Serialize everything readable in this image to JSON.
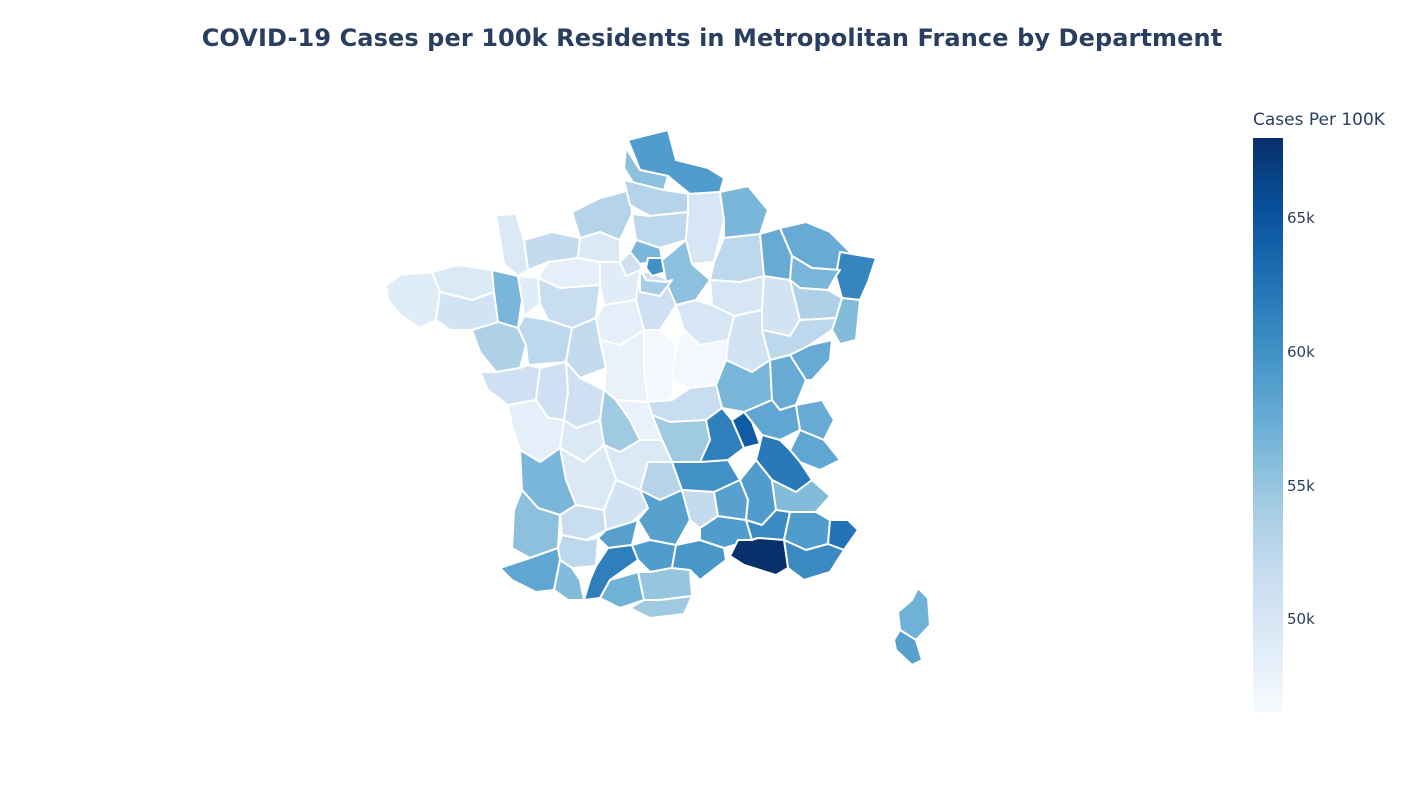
{
  "chart_data": {
    "type": "choropleth",
    "title": "COVID-19 Cases per 100k Residents in Metropolitan France by Department",
    "colorscale": "Blues",
    "color_range": [
      46500,
      68000
    ],
    "colorbar": {
      "title": "Cases Per 100K",
      "ticks": [
        {
          "value": 50000,
          "label": "50k"
        },
        {
          "value": 55000,
          "label": "55k"
        },
        {
          "value": 60000,
          "label": "60k"
        },
        {
          "value": 65000,
          "label": "65k"
        }
      ]
    },
    "colors": {
      "low": "#f7fbff",
      "high": "#08306b",
      "border": "#ffffff"
    },
    "regions": [
      {
        "name": "Finistère",
        "value": 49000
      },
      {
        "name": "Côtes-d'Armor",
        "value": 49500
      },
      {
        "name": "Morbihan",
        "value": 50500
      },
      {
        "name": "Ille-et-Vilaine",
        "value": 56500
      },
      {
        "name": "Manche",
        "value": 49500
      },
      {
        "name": "Calvados",
        "value": 52000
      },
      {
        "name": "Orne",
        "value": 48500
      },
      {
        "name": "Mayenne",
        "value": 49000
      },
      {
        "name": "Sarthe",
        "value": 51500
      },
      {
        "name": "Loire-Atlantique",
        "value": 53500
      },
      {
        "name": "Maine-et-Loire",
        "value": 52500
      },
      {
        "name": "Vendée",
        "value": 51000
      },
      {
        "name": "Eure",
        "value": 49500
      },
      {
        "name": "Seine-Maritime",
        "value": 53000
      },
      {
        "name": "Eure-et-Loir",
        "value": 49000
      },
      {
        "name": "Loir-et-Cher",
        "value": 48500
      },
      {
        "name": "Indre-et-Loire",
        "value": 52000
      },
      {
        "name": "Loiret",
        "value": 51000
      },
      {
        "name": "Cher",
        "value": 47000
      },
      {
        "name": "Indre",
        "value": 48000
      },
      {
        "name": "Nord",
        "value": 59000
      },
      {
        "name": "Pas-de-Calais",
        "value": 55500
      },
      {
        "name": "Somme",
        "value": 53000
      },
      {
        "name": "Oise",
        "value": 52500
      },
      {
        "name": "Aisne",
        "value": 50000
      },
      {
        "name": "Ardennes",
        "value": 56500
      },
      {
        "name": "Marne",
        "value": 52500
      },
      {
        "name": "Aube",
        "value": 50000
      },
      {
        "name": "Haute-Marne",
        "value": 50500
      },
      {
        "name": "Val-d'Oise",
        "value": 56500
      },
      {
        "name": "Paris",
        "value": 60000
      },
      {
        "name": "Seine-et-Marne",
        "value": 55500
      },
      {
        "name": "Yvelines",
        "value": 51000
      },
      {
        "name": "Essonne",
        "value": 54000
      },
      {
        "name": "Meuse",
        "value": 57500
      },
      {
        "name": "Moselle",
        "value": 57500
      },
      {
        "name": "Bas-Rhin",
        "value": 61000
      },
      {
        "name": "Meurthe-et-Moselle",
        "value": 56500
      },
      {
        "name": "Vosges",
        "value": 53500
      },
      {
        "name": "Haut-Rhin",
        "value": 56000
      },
      {
        "name": "Yonne",
        "value": 50000
      },
      {
        "name": "Côte-d'Or",
        "value": 50500
      },
      {
        "name": "Haute-Saône",
        "value": 52500
      },
      {
        "name": "Nièvre",
        "value": 47000
      },
      {
        "name": "Saône-et-Loire",
        "value": 56500
      },
      {
        "name": "Jura",
        "value": 57500
      },
      {
        "name": "Doubs",
        "value": 57500
      },
      {
        "name": "Allier",
        "value": 51500
      },
      {
        "name": "Puy-de-Dôme",
        "value": 54500
      },
      {
        "name": "Cantal",
        "value": 53000
      },
      {
        "name": "Haute-Loire",
        "value": 60000
      },
      {
        "name": "Loire",
        "value": 61500
      },
      {
        "name": "Rhône",
        "value": 64500
      },
      {
        "name": "Ain",
        "value": 58000
      },
      {
        "name": "Haute-Savoie",
        "value": 57500
      },
      {
        "name": "Savoie",
        "value": 58000
      },
      {
        "name": "Isère",
        "value": 62000
      },
      {
        "name": "Deux-Sèvres",
        "value": 51000
      },
      {
        "name": "Vienne",
        "value": 51000
      },
      {
        "name": "Charente-Maritime",
        "value": 48500
      },
      {
        "name": "Charente",
        "value": 49500
      },
      {
        "name": "Haute-Vienne",
        "value": 54500
      },
      {
        "name": "Creuse",
        "value": 48000
      },
      {
        "name": "Corrèze",
        "value": 49500
      },
      {
        "name": "Dordogne",
        "value": 49500
      },
      {
        "name": "Gironde",
        "value": 56500
      },
      {
        "name": "Landes",
        "value": 55500
      },
      {
        "name": "Lot-et-Garonne",
        "value": 51500
      },
      {
        "name": "Lot",
        "value": 50500
      },
      {
        "name": "Aveyron",
        "value": 58500
      },
      {
        "name": "Lozère",
        "value": 52000
      },
      {
        "name": "Tarn-et-Garonne",
        "value": 58500
      },
      {
        "name": "Gers",
        "value": 52500
      },
      {
        "name": "Haute-Garonne",
        "value": 61500
      },
      {
        "name": "Tarn",
        "value": 59000
      },
      {
        "name": "Pyrénées-Atlantiques",
        "value": 58000
      },
      {
        "name": "Hautes-Pyrénées",
        "value": 56000
      },
      {
        "name": "Ariège",
        "value": 57000
      },
      {
        "name": "Aude",
        "value": 55000
      },
      {
        "name": "Pyrénées-Orientales",
        "value": 54500
      },
      {
        "name": "Hérault",
        "value": 59500
      },
      {
        "name": "Gard",
        "value": 59000
      },
      {
        "name": "Ardèche",
        "value": 58500
      },
      {
        "name": "Drôme",
        "value": 59000
      },
      {
        "name": "Hautes-Alpes",
        "value": 56000
      },
      {
        "name": "Vaucluse",
        "value": 60500
      },
      {
        "name": "Alpes-de-Haute-Provence",
        "value": 59000
      },
      {
        "name": "Alpes-Maritimes",
        "value": 62500
      },
      {
        "name": "Var",
        "value": 60500
      },
      {
        "name": "Bouches-du-Rhône",
        "value": 68000
      },
      {
        "name": "Haute-Corse",
        "value": 57000
      },
      {
        "name": "Corse-du-Sud",
        "value": 58500
      }
    ]
  }
}
